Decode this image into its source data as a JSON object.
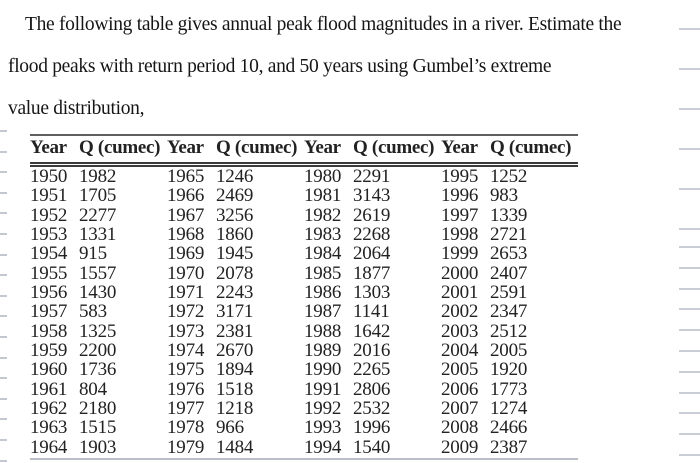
{
  "problem": {
    "line1": "The following table gives annual peak flood magnitudes in a river. Estimate the",
    "line2": "flood peaks with return period 10, and 50 years using Gumbel’s extreme",
    "line3": "value distribution,"
  },
  "table": {
    "headers": [
      "Year",
      "Q (cumec)",
      "Year",
      "Q (cumec)",
      "Year",
      "Q (cumec)",
      "Year",
      "Q (cumec)"
    ],
    "rows": [
      [
        "1950",
        "1982",
        "1965",
        "1246",
        "1980",
        "2291",
        "1995",
        "1252"
      ],
      [
        "1951",
        "1705",
        "1966",
        "2469",
        "1981",
        "3143",
        "1996",
        "983"
      ],
      [
        "1952",
        "2277",
        "1967",
        "3256",
        "1982",
        "2619",
        "1997",
        "1339"
      ],
      [
        "1953",
        "1331",
        "1968",
        "1860",
        "1983",
        "2268",
        "1998",
        "2721"
      ],
      [
        "1954",
        "915",
        "1969",
        "1945",
        "1984",
        "2064",
        "1999",
        "2653"
      ],
      [
        "1955",
        "1557",
        "1970",
        "2078",
        "1985",
        "1877",
        "2000",
        "2407"
      ],
      [
        "1956",
        "1430",
        "1971",
        "2243",
        "1986",
        "1303",
        "2001",
        "2591"
      ],
      [
        "1957",
        "583",
        "1972",
        "3171",
        "1987",
        "1141",
        "2002",
        "2347"
      ],
      [
        "1958",
        "1325",
        "1973",
        "2381",
        "1988",
        "1642",
        "2003",
        "2512"
      ],
      [
        "1959",
        "2200",
        "1974",
        "2670",
        "1989",
        "2016",
        "2004",
        "2005"
      ],
      [
        "1960",
        "1736",
        "1975",
        "1894",
        "1990",
        "2265",
        "2005",
        "1920"
      ],
      [
        "1961",
        "804",
        "1976",
        "1518",
        "1991",
        "2806",
        "2006",
        "1773"
      ],
      [
        "1962",
        "2180",
        "1977",
        "1218",
        "1992",
        "2532",
        "2007",
        "1274"
      ],
      [
        "1963",
        "1515",
        "1978",
        "966",
        "1993",
        "1996",
        "2008",
        "2466"
      ],
      [
        "1964",
        "1903",
        "1979",
        "1484",
        "1994",
        "1540",
        "2009",
        "2387"
      ]
    ]
  }
}
